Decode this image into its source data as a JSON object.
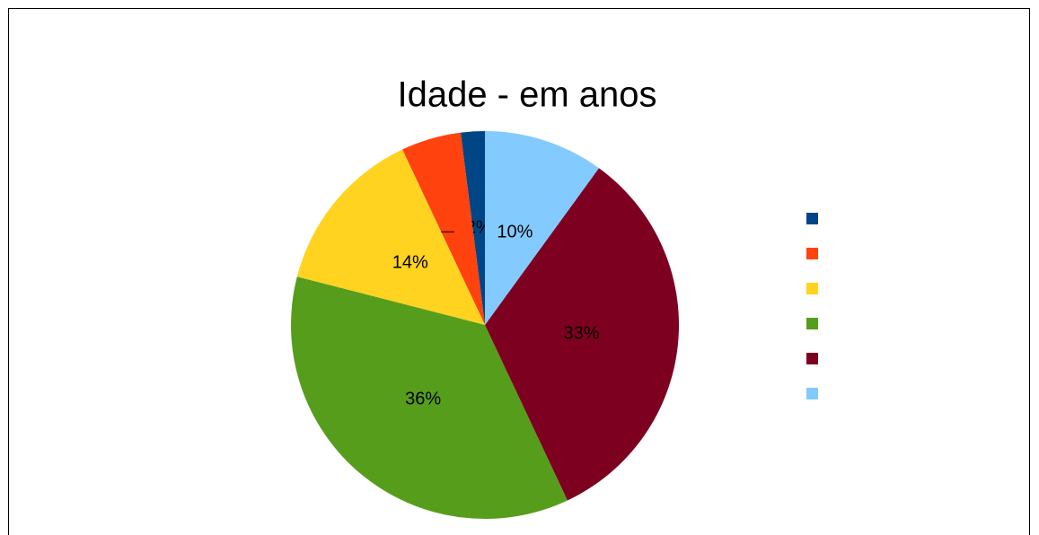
{
  "chart_data": {
    "type": "pie",
    "title": "Idade - em anos",
    "categories": [
      null,
      null,
      null,
      null,
      null,
      null
    ],
    "values": [
      2,
      5,
      14,
      36,
      33,
      10
    ],
    "value_labels": [
      "2%",
      "5%",
      "14%",
      "36%",
      "33%",
      "10%"
    ],
    "colors": [
      "#004586",
      "#ff420e",
      "#ffd320",
      "#579d1c",
      "#7e0021",
      "#83caff"
    ],
    "legend": "right"
  }
}
